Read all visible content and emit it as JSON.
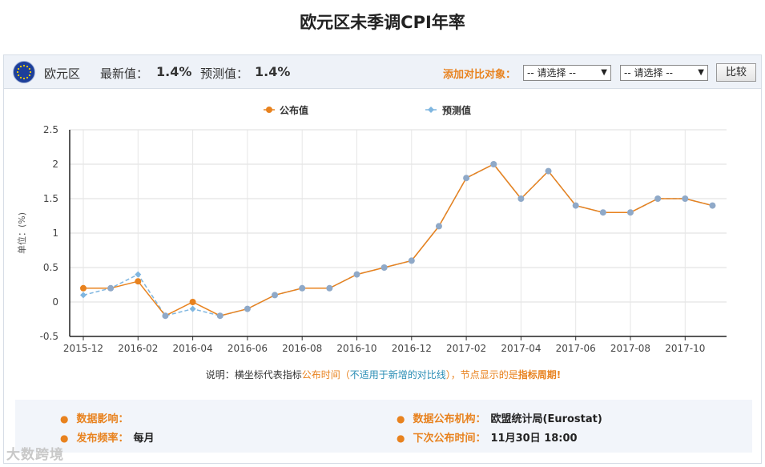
{
  "title": "欧元区未季调CPI年率",
  "header": {
    "region": "欧元区",
    "latest_label": "最新值：",
    "latest_value": "1.4%",
    "forecast_label": "预测值：",
    "forecast_value": "1.4%",
    "compare_label": "添加对比对象：",
    "select1": "-- 请选择 --",
    "select2": "-- 请选择 --",
    "compare_button": "比较"
  },
  "note": {
    "p1": "说明：横坐标代表指标",
    "p2": "公布时间",
    "p3": "（",
    "p4": "不适用于新增的对比线",
    "p5": "），节点显示的是",
    "p6": "指标周期!"
  },
  "info": {
    "impact_label": "数据影响：",
    "impact_value": "",
    "freq_label": "发布频率：",
    "freq_value": "每月",
    "agency_label": "数据公布机构：",
    "agency_value": "欧盟统计局(Eurostat)",
    "next_label": "下次公布时间：",
    "next_value": "11月30日 18:00"
  },
  "watermark": "大数跨境",
  "colors": {
    "published": "#e8821e",
    "forecast": "#7fb6e0",
    "marker_overlap": "#8fa9c8"
  },
  "chart_data": {
    "type": "line",
    "ylabel": "单位：(%)",
    "ylim": [
      -0.5,
      2.5
    ],
    "yticks": [
      "2.5",
      "2",
      "1.5",
      "1",
      "0.5",
      "0",
      "-0.5"
    ],
    "ytick_values": [
      2.5,
      2,
      1.5,
      1,
      0.5,
      0,
      -0.5
    ],
    "x": [
      "2015-12",
      "2016-01",
      "2016-02",
      "2016-03",
      "2016-04",
      "2016-05",
      "2016-06",
      "2016-07",
      "2016-08",
      "2016-09",
      "2016-10",
      "2016-11",
      "2016-12",
      "2017-01",
      "2017-02",
      "2017-03",
      "2017-04",
      "2017-05",
      "2017-06",
      "2017-07",
      "2017-08",
      "2017-09",
      "2017-10",
      "2017-11"
    ],
    "xtick_labels": [
      "2015-12",
      "2016-02",
      "2016-04",
      "2016-06",
      "2016-08",
      "2016-10",
      "2016-12",
      "2017-02",
      "2017-04",
      "2017-06",
      "2017-08",
      "2017-10"
    ],
    "legend_position": "top-center",
    "grid": true,
    "series": [
      {
        "name": "公布值",
        "values": [
          0.2,
          0.2,
          0.3,
          -0.2,
          0.0,
          -0.2,
          -0.1,
          0.1,
          0.2,
          0.2,
          0.4,
          0.5,
          0.6,
          1.1,
          1.8,
          2.0,
          1.5,
          1.9,
          1.4,
          1.3,
          1.3,
          1.5,
          1.5,
          1.4
        ]
      },
      {
        "name": "预测值",
        "values": [
          0.1,
          0.2,
          0.4,
          -0.2,
          -0.1,
          -0.2,
          -0.1,
          0.1,
          0.2,
          0.2,
          0.4,
          0.5,
          0.6,
          1.1,
          1.8,
          2.0,
          1.5,
          1.9,
          1.4,
          1.3,
          1.3,
          1.5,
          1.5,
          1.4
        ]
      }
    ]
  }
}
